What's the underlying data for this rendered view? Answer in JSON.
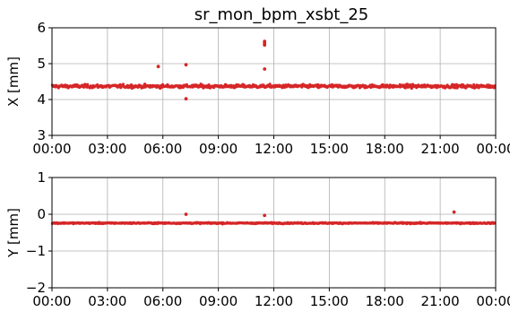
{
  "chart_data": {
    "title": "sr_mon_bpm_xsbt_25",
    "type": "scatter",
    "point_color": "#d62728",
    "x_tick_labels": [
      "00:00",
      "03:00",
      "06:00",
      "09:00",
      "12:00",
      "15:00",
      "18:00",
      "21:00",
      "00:00"
    ],
    "x_tick_hours": [
      0,
      3,
      6,
      9,
      12,
      15,
      18,
      21,
      24
    ],
    "grid": true,
    "panels": [
      {
        "ylabel": "X [mm]",
        "ylim": [
          3,
          6
        ],
        "y_ticks": [
          3,
          4,
          5,
          6
        ],
        "y_tick_labels": [
          "3",
          "4",
          "5",
          "6"
        ],
        "series": {
          "sample_interval_minutes": 2,
          "typical_range": [
            4.2,
            4.55
          ],
          "baseline_mean": 4.37,
          "outliers": [
            {
              "time": "05:45",
              "y": 4.92
            },
            {
              "time": "07:15",
              "y": 4.97
            },
            {
              "time": "07:15",
              "y": 4.02
            },
            {
              "time": "11:30",
              "y": 5.52
            },
            {
              "time": "11:30",
              "y": 5.57
            },
            {
              "time": "11:30",
              "y": 5.62
            },
            {
              "time": "11:30",
              "y": 4.85
            }
          ]
        }
      },
      {
        "ylabel": "Y [mm]",
        "ylim": [
          -2,
          1
        ],
        "y_ticks": [
          -2,
          -1,
          0,
          1
        ],
        "y_tick_labels": [
          "−2",
          "−1",
          "0",
          "1"
        ],
        "series": {
          "sample_interval_minutes": 2,
          "typical_range": [
            -0.3,
            -0.18
          ],
          "baseline_mean": -0.24,
          "outliers": [
            {
              "time": "07:15",
              "y": 0.0
            },
            {
              "time": "11:30",
              "y": -0.03
            },
            {
              "time": "21:45",
              "y": 0.06
            }
          ]
        }
      }
    ]
  }
}
